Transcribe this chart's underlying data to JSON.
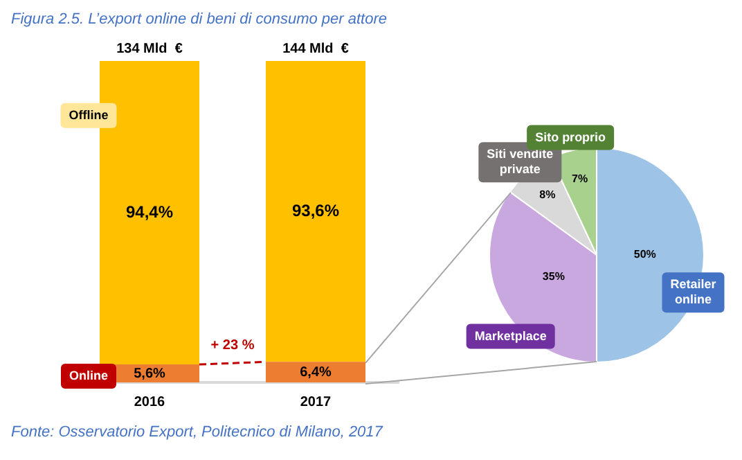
{
  "chart_data": [
    {
      "type": "bar",
      "title": "Figura 2.5. L’export online di beni di consumo per attore",
      "categories": [
        "2016",
        "2017"
      ],
      "stacked": true,
      "ylim": [
        0,
        100
      ],
      "tick_labels": "x",
      "legend": "left",
      "series": [
        {
          "name": "Online",
          "color": "#ed7d31",
          "values": [
            5.6,
            6.4
          ],
          "value_labels": [
            "5,6%",
            "6,4%"
          ]
        },
        {
          "name": "Offline",
          "color": "#ffc000",
          "values": [
            94.4,
            93.6
          ],
          "value_labels": [
            "94,4%",
            "93,6%"
          ]
        }
      ],
      "annotations": [
        {
          "text": "134 Mld  €",
          "x": "2016",
          "y": 100
        },
        {
          "text": "144 Mld  €",
          "x": "2017",
          "y": 100
        },
        "+ 23 %",
        "Fonte: Osservatorio Export, Politecnico di Milano, 2017"
      ]
    },
    {
      "type": "pie",
      "categories": [
        "Retailer online",
        "Marketplace",
        "Siti vendite private",
        "Sito proprio"
      ],
      "values": [
        50,
        35,
        8,
        7
      ],
      "colors": [
        "#9dc3e6",
        "#c9a8e0",
        "#d9d9d9",
        "#a9d18e"
      ],
      "value_labels": [
        "50%",
        "35%",
        "8%",
        "7%"
      ]
    }
  ]
}
